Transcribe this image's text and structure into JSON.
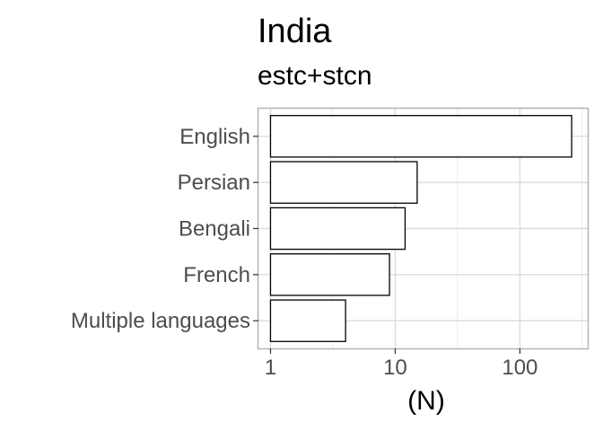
{
  "chart_data": {
    "type": "bar",
    "orientation": "horizontal",
    "title": "India",
    "subtitle": "estc+stcn",
    "xlabel": "(N)",
    "ylabel": "",
    "x_scale": "log10",
    "xlim": [
      0.8,
      350
    ],
    "x_ticks": [
      1,
      10,
      100
    ],
    "x_tick_labels": [
      "1",
      "10",
      "100"
    ],
    "categories": [
      "English",
      "Persian",
      "Bengali",
      "French",
      "Multiple languages"
    ],
    "values": [
      260,
      15,
      12,
      9,
      4
    ],
    "bar_fill": "#ffffff",
    "bar_stroke": "#000000",
    "grid": true,
    "legend": "none"
  }
}
